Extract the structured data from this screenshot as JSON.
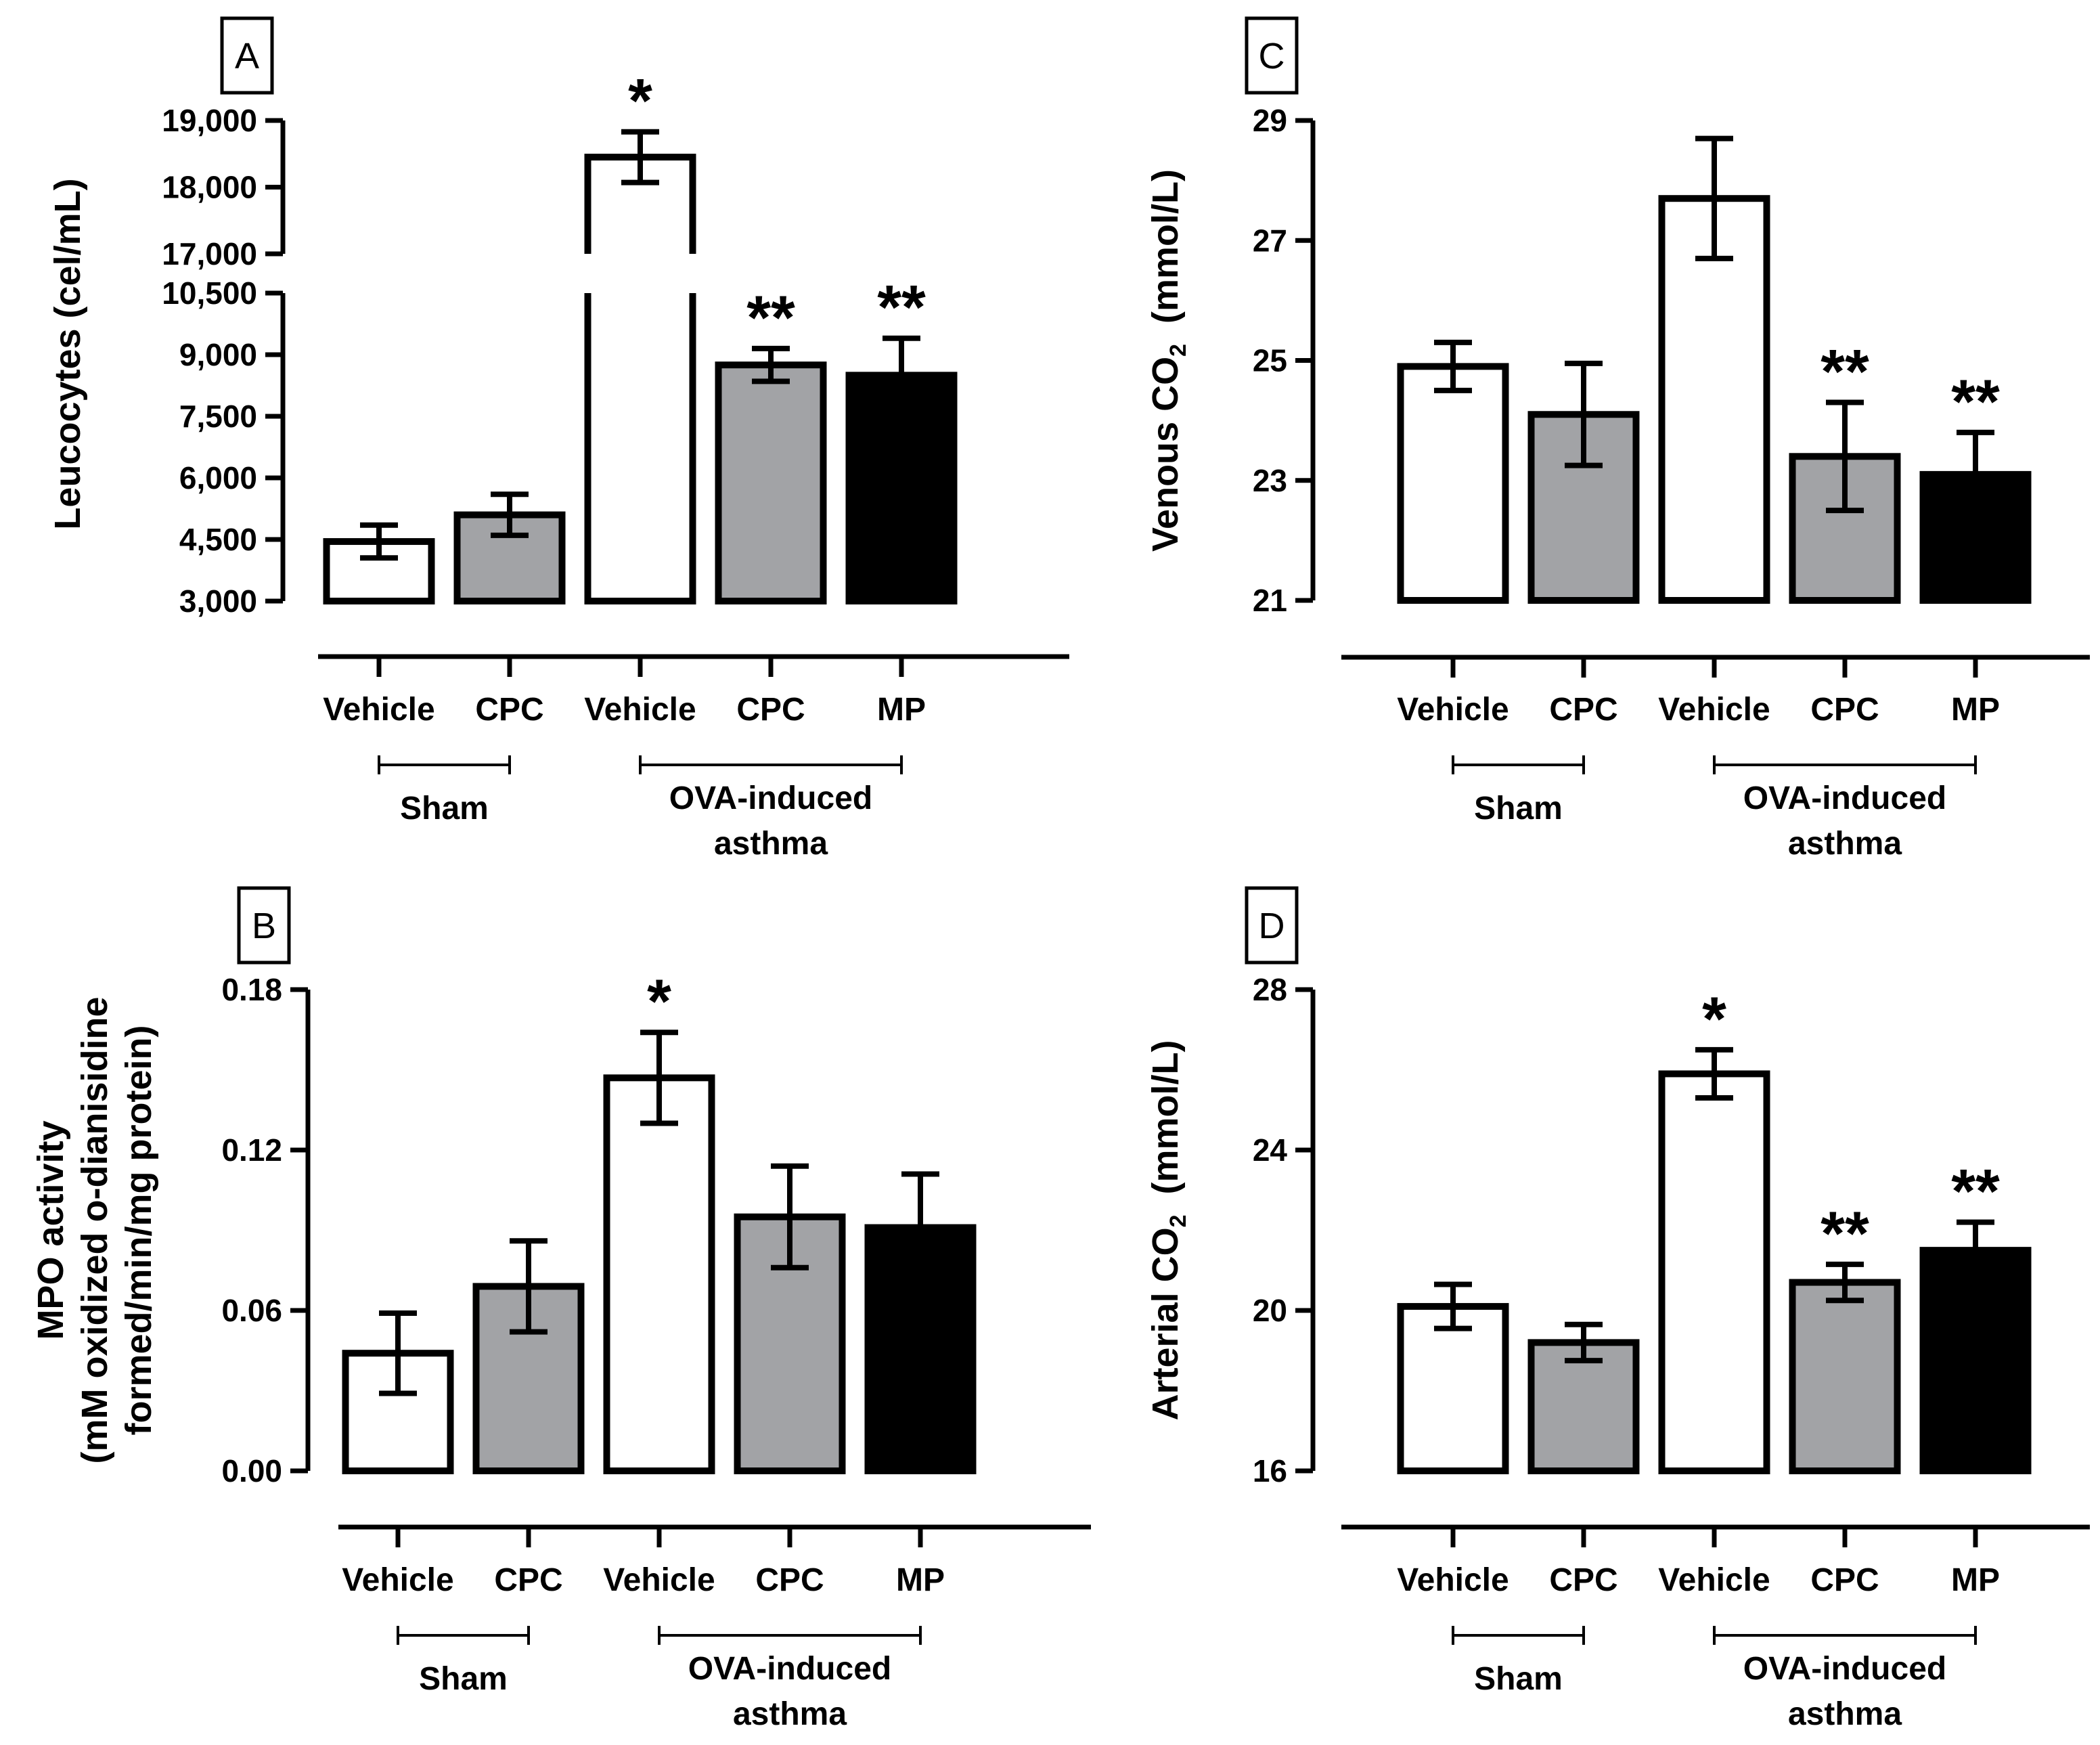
{
  "chart_data": [
    {
      "type": "bar",
      "panel": "A",
      "ylabel": "Leucocytes (cel/mL)",
      "y_broken": true,
      "ylim_lower": [
        3000,
        10500
      ],
      "ylim_upper": [
        17000,
        19000
      ],
      "yticks": [
        3000,
        4500,
        6000,
        7500,
        9000,
        10500,
        17000,
        18000,
        19000
      ],
      "ytick_labels": [
        "3,000",
        "4,500",
        "6,000",
        "7,500",
        "9,000",
        "10,500",
        "17,000",
        "18,000",
        "19,000"
      ],
      "categories": [
        "Vehicle",
        "CPC",
        "Vehicle",
        "CPC",
        "MP"
      ],
      "fills": [
        "#ffffff",
        "#a2a3a6",
        "#ffffff",
        "#a2a3a6",
        "#000000"
      ],
      "values": [
        4450,
        5100,
        18450,
        8750,
        8500
      ],
      "errors": [
        400,
        500,
        380,
        400,
        900
      ],
      "stars": [
        "",
        "",
        "*",
        "**",
        "**"
      ],
      "groups": [
        {
          "label": "Sham",
          "from": 0,
          "to": 1
        },
        {
          "label": "OVA-induced",
          "label2": "asthma",
          "from": 2,
          "to": 4
        }
      ]
    },
    {
      "type": "bar",
      "panel": "B",
      "ylabel_lines": [
        "MPO activity",
        "(mM oxidized o-dianisidine",
        "formed/min/mg protein)"
      ],
      "ylim": [
        0,
        0.18
      ],
      "yticks": [
        0,
        0.06,
        0.12,
        0.18
      ],
      "ytick_labels": [
        "0.00",
        "0.06",
        "0.12",
        "0.18"
      ],
      "categories": [
        "Vehicle",
        "CPC",
        "Vehicle",
        "CPC",
        "MP"
      ],
      "fills": [
        "#ffffff",
        "#a2a3a6",
        "#ffffff",
        "#a2a3a6",
        "#000000"
      ],
      "values": [
        0.044,
        0.069,
        0.147,
        0.095,
        0.091
      ],
      "errors": [
        0.015,
        0.017,
        0.017,
        0.019,
        0.02
      ],
      "stars": [
        "",
        "",
        "*",
        "",
        ""
      ],
      "groups": [
        {
          "label": "Sham",
          "from": 0,
          "to": 1
        },
        {
          "label": "OVA-induced",
          "label2": "asthma",
          "from": 2,
          "to": 4
        }
      ]
    },
    {
      "type": "bar",
      "panel": "C",
      "ylabel_pre": "Venous CO",
      "ylabel_sub": "2",
      "ylabel_post": " (mmol/L)",
      "ylim": [
        21,
        29
      ],
      "yticks": [
        21,
        23,
        25,
        27,
        29
      ],
      "ytick_labels": [
        "21",
        "23",
        "25",
        "27",
        "29"
      ],
      "categories": [
        "Vehicle",
        "CPC",
        "Vehicle",
        "CPC",
        "MP"
      ],
      "fills": [
        "#ffffff",
        "#a2a3a6",
        "#ffffff",
        "#a2a3a6",
        "#000000"
      ],
      "values": [
        24.9,
        24.1,
        27.7,
        23.4,
        23.1
      ],
      "errors": [
        0.4,
        0.85,
        1.0,
        0.9,
        0.7
      ],
      "stars": [
        "",
        "",
        "",
        "**",
        "**"
      ],
      "groups": [
        {
          "label": "Sham",
          "from": 0,
          "to": 1
        },
        {
          "label": "OVA-induced",
          "label2": "asthma",
          "from": 2,
          "to": 4
        }
      ]
    },
    {
      "type": "bar",
      "panel": "D",
      "ylabel_pre": "Arterial CO",
      "ylabel_sub": "2",
      "ylabel_post": " (mmol/L)",
      "ylim": [
        16,
        28
      ],
      "yticks": [
        16,
        20,
        24,
        28
      ],
      "ytick_labels": [
        "16",
        "20",
        "24",
        "28"
      ],
      "categories": [
        "Vehicle",
        "CPC",
        "Vehicle",
        "CPC",
        "MP"
      ],
      "fills": [
        "#ffffff",
        "#a2a3a6",
        "#ffffff",
        "#a2a3a6",
        "#000000"
      ],
      "values": [
        20.1,
        19.2,
        25.9,
        20.7,
        21.5
      ],
      "errors": [
        0.55,
        0.45,
        0.6,
        0.45,
        0.7
      ],
      "stars": [
        "",
        "",
        "*",
        "**",
        "**"
      ],
      "groups": [
        {
          "label": "Sham",
          "from": 0,
          "to": 1
        },
        {
          "label": "OVA-induced",
          "label2": "asthma",
          "from": 2,
          "to": 4
        }
      ]
    }
  ]
}
